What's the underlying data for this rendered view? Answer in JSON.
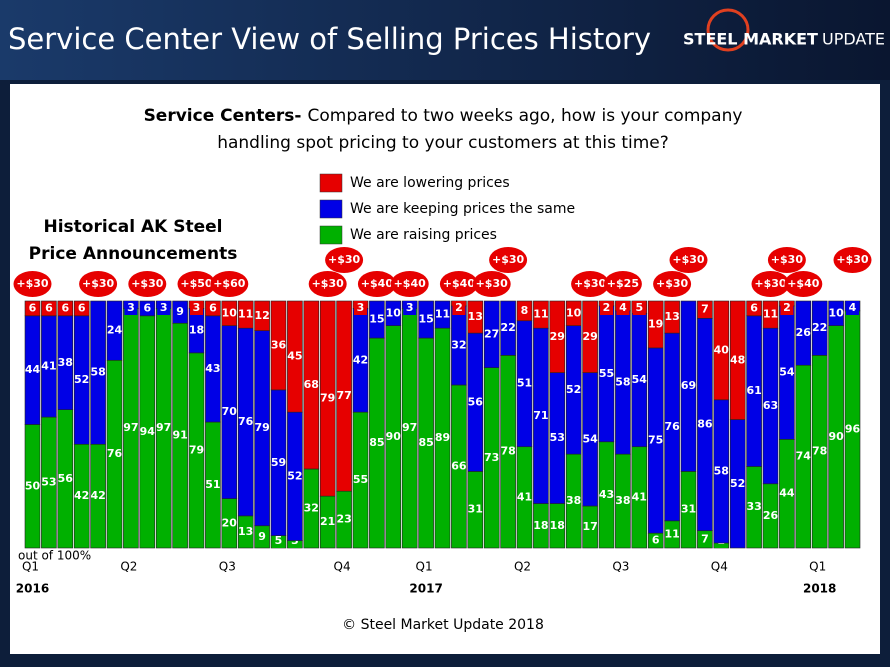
{
  "header": {
    "title": "Service Center View of Selling Prices History",
    "logo_bold": "STEEL MARKET",
    "logo_light": "UPDATE"
  },
  "chart_data": {
    "type": "stacked-bar",
    "title_lead": "Service Centers-",
    "title_lines": [
      "Compared to two weeks ago, how is your company",
      "handling spot pricing to your customers at this time?"
    ],
    "annotation_lines": [
      "Historical AK Steel",
      "Price Announcements"
    ],
    "axis_note": "out of 100%",
    "footer": "© Steel Market Update 2018",
    "ylim": [
      0,
      100
    ],
    "categories": [
      "Q1",
      null,
      null,
      null,
      null,
      null,
      "Q2",
      null,
      null,
      null,
      null,
      null,
      "Q3",
      null,
      null,
      null,
      null,
      null,
      null,
      "Q4",
      null,
      null,
      null,
      null,
      "Q1",
      null,
      null,
      null,
      null,
      null,
      "Q2",
      null,
      null,
      null,
      null,
      null,
      "Q3",
      null,
      null,
      null,
      null,
      null,
      "Q4",
      null,
      null,
      null,
      null,
      null,
      "Q1",
      null,
      null
    ],
    "years": [
      "2016",
      null,
      null,
      null,
      null,
      null,
      null,
      null,
      null,
      null,
      null,
      null,
      null,
      null,
      null,
      null,
      null,
      null,
      null,
      null,
      null,
      null,
      null,
      null,
      "2017",
      null,
      null,
      null,
      null,
      null,
      null,
      null,
      null,
      null,
      null,
      null,
      null,
      null,
      null,
      null,
      null,
      null,
      null,
      null,
      null,
      null,
      null,
      null,
      "2018",
      null,
      null
    ],
    "announcements": [
      "+$30",
      null,
      null,
      null,
      "+$30",
      null,
      null,
      "+$30",
      null,
      null,
      "+$50",
      null,
      "+$60",
      null,
      null,
      null,
      null,
      null,
      "+$30",
      "+$30",
      null,
      "+$40",
      null,
      "+$40",
      null,
      null,
      "+$40",
      null,
      "+$30",
      "+$30",
      null,
      null,
      null,
      null,
      "+$30",
      null,
      "+$25",
      null,
      null,
      "+$30",
      "+$30",
      null,
      null,
      null,
      null,
      "+$30",
      "+$30",
      "+$40",
      null,
      null,
      "+$30"
    ],
    "series": [
      {
        "name": "We are raising prices",
        "color": "#00b000",
        "values": [
          50,
          53,
          56,
          42,
          42,
          76,
          97,
          94,
          97,
          91,
          79,
          51,
          20,
          13,
          9,
          5,
          3,
          32,
          21,
          23,
          55,
          85,
          90,
          97,
          85,
          89,
          66,
          31,
          73,
          78,
          41,
          18,
          18,
          38,
          17,
          43,
          38,
          41,
          6,
          11,
          31,
          7,
          2,
          0,
          33,
          26,
          44,
          74,
          78,
          90,
          96
        ]
      },
      {
        "name": "We are keeping prices the same",
        "color": "#0000e6",
        "values": [
          44,
          41,
          38,
          52,
          58,
          24,
          3,
          6,
          3,
          9,
          18,
          43,
          70,
          76,
          79,
          59,
          52,
          0,
          0,
          0,
          42,
          15,
          10,
          3,
          15,
          11,
          32,
          56,
          27,
          22,
          51,
          71,
          53,
          52,
          54,
          55,
          58,
          54,
          75,
          76,
          69,
          86,
          58,
          52,
          61,
          63,
          54,
          26,
          22,
          10,
          4
        ]
      },
      {
        "name": "We are lowering prices",
        "color": "#e60000",
        "values": [
          6,
          6,
          6,
          6,
          0,
          0,
          0,
          0,
          0,
          0,
          3,
          6,
          10,
          11,
          12,
          36,
          45,
          68,
          79,
          77,
          3,
          0,
          0,
          0,
          0,
          0,
          2,
          13,
          0,
          0,
          8,
          11,
          29,
          10,
          29,
          2,
          4,
          5,
          19,
          13,
          0,
          7,
          40,
          48,
          6,
          11,
          2,
          0,
          0,
          0,
          0
        ]
      }
    ]
  }
}
